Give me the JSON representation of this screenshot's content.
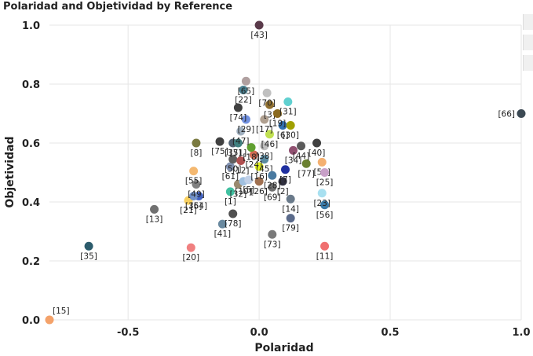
{
  "chart_data": {
    "type": "scatter",
    "title": "Polaridad and Objetividad by Reference",
    "xlabel": "Polaridad",
    "ylabel": "Objetividad",
    "xlim": [
      -0.8,
      1.0
    ],
    "ylim": [
      0.0,
      1.0
    ],
    "x_ticks": [
      "-0.5",
      "0.0",
      "0.5",
      "1.0"
    ],
    "x_tick_values": [
      -0.5,
      0.0,
      0.5,
      1.0
    ],
    "y_ticks": [
      "0.0",
      "0.2",
      "0.4",
      "0.6",
      "0.8",
      "1.0"
    ],
    "y_tick_values": [
      0.0,
      0.2,
      0.4,
      0.6,
      0.8,
      1.0
    ],
    "grid": true,
    "points": [
      {
        "label": "[43]",
        "x": 0.0,
        "y": 1.0,
        "color": "#5a3a4a"
      },
      {
        "label": "[66]",
        "x": 1.0,
        "y": 0.7,
        "color": "#3c4a54"
      },
      {
        "label": "[15]",
        "x": -0.8,
        "y": 0.0,
        "color": "#f4a26a"
      },
      {
        "label": "[35]",
        "x": -0.65,
        "y": 0.25,
        "color": "#2c5c6c"
      },
      {
        "label": "[20]",
        "x": -0.26,
        "y": 0.245,
        "color": "#f08080"
      },
      {
        "label": "[11]",
        "x": 0.25,
        "y": 0.25,
        "color": "#f07070"
      },
      {
        "label": "[73]",
        "x": 0.05,
        "y": 0.29,
        "color": "#7a7a7a"
      },
      {
        "label": "[41]",
        "x": -0.14,
        "y": 0.325,
        "color": "#6a8aa0"
      },
      {
        "label": "[78]",
        "x": -0.1,
        "y": 0.36,
        "color": "#505050"
      },
      {
        "label": "[79]",
        "x": 0.12,
        "y": 0.345,
        "color": "#5a6a8a"
      },
      {
        "label": "[13]",
        "x": -0.4,
        "y": 0.375,
        "color": "#707070"
      },
      {
        "label": "[21]",
        "x": -0.27,
        "y": 0.405,
        "color": "#f8d060"
      },
      {
        "label": "[14]",
        "x": 0.12,
        "y": 0.41,
        "color": "#6a7a8a"
      },
      {
        "label": "[56]",
        "x": 0.25,
        "y": 0.39,
        "color": "#3a7aa8"
      },
      {
        "label": "[23]",
        "x": 0.24,
        "y": 0.43,
        "color": "#a8e0f0"
      },
      {
        "label": "[54]",
        "x": -0.23,
        "y": 0.42,
        "color": "#4060c0"
      },
      {
        "label": "[36]",
        "x": -0.25,
        "y": 0.42,
        "color": "#7090c8"
      },
      {
        "label": "[1]",
        "x": -0.11,
        "y": 0.435,
        "color": "#40c0a0"
      },
      {
        "label": "[32]",
        "x": -0.08,
        "y": 0.46,
        "color": "#9a8a70"
      },
      {
        "label": "[49]",
        "x": -0.24,
        "y": 0.46,
        "color": "#808080"
      },
      {
        "label": "[10]",
        "x": -0.06,
        "y": 0.47,
        "color": "#a0c0e0"
      },
      {
        "label": "[5]",
        "x": -0.04,
        "y": 0.475,
        "color": "#c0d0e8"
      },
      {
        "label": "[26]",
        "x": 0.0,
        "y": 0.47,
        "color": "#a07050"
      },
      {
        "label": "[69]",
        "x": 0.05,
        "y": 0.45,
        "color": "#707070"
      },
      {
        "label": "[2]",
        "x": 0.09,
        "y": 0.47,
        "color": "#303040"
      },
      {
        "label": "[55]",
        "x": -0.25,
        "y": 0.505,
        "color": "#f4b870"
      },
      {
        "label": "[61]",
        "x": -0.11,
        "y": 0.52,
        "color": "#8090b0"
      },
      {
        "label": "[50]",
        "x": -0.1,
        "y": 0.545,
        "color": "#606060"
      },
      {
        "label": "[12]",
        "x": -0.07,
        "y": 0.54,
        "color": "#b05050"
      },
      {
        "label": "[16]",
        "x": 0.0,
        "y": 0.52,
        "color": "#e0f020"
      },
      {
        "label": "[45]",
        "x": 0.02,
        "y": 0.545,
        "color": "#5a8aa0"
      },
      {
        "label": "[24]",
        "x": -0.02,
        "y": 0.56,
        "color": "#d06a50"
      },
      {
        "label": "[7]",
        "x": 0.1,
        "y": 0.51,
        "color": "#2030a0"
      },
      {
        "label": "[28]",
        "x": 0.05,
        "y": 0.49,
        "color": "#4a7aa0"
      },
      {
        "label": "[58]",
        "x": 0.24,
        "y": 0.535,
        "color": "#f4b070"
      },
      {
        "label": "[25]",
        "x": 0.25,
        "y": 0.5,
        "color": "#c8a0c8"
      },
      {
        "label": "[77]",
        "x": 0.18,
        "y": 0.53,
        "color": "#6a8030"
      },
      {
        "label": "[34]",
        "x": 0.13,
        "y": 0.575,
        "color": "#905070"
      },
      {
        "label": "[40]",
        "x": 0.22,
        "y": 0.6,
        "color": "#404040"
      },
      {
        "label": "[44]",
        "x": 0.16,
        "y": 0.59,
        "color": "#5a5a5a"
      },
      {
        "label": "[8]",
        "x": -0.24,
        "y": 0.6,
        "color": "#7a7a40"
      },
      {
        "label": "[75]",
        "x": -0.15,
        "y": 0.605,
        "color": "#404040"
      },
      {
        "label": "[37]",
        "x": -0.1,
        "y": 0.6,
        "color": "#506070"
      },
      {
        "label": "[51]",
        "x": -0.08,
        "y": 0.6,
        "color": "#408080"
      },
      {
        "label": "[18]",
        "x": -0.03,
        "y": 0.585,
        "color": "#60a030"
      },
      {
        "label": "[38]",
        "x": 0.02,
        "y": 0.59,
        "color": "#c0c0c0"
      },
      {
        "label": "[46]",
        "x": 0.04,
        "y": 0.63,
        "color": "#c0e050"
      },
      {
        "label": "[47]",
        "x": -0.07,
        "y": 0.64,
        "color": "#a0b0c0"
      },
      {
        "label": "[29]",
        "x": -0.05,
        "y": 0.68,
        "color": "#7090e0"
      },
      {
        "label": "[17]",
        "x": 0.02,
        "y": 0.68,
        "color": "#b0a090"
      },
      {
        "label": "[6]",
        "x": 0.09,
        "y": 0.66,
        "color": "#3070b0"
      },
      {
        "label": "[30]",
        "x": 0.12,
        "y": 0.66,
        "color": "#a0a000"
      },
      {
        "label": "[74]",
        "x": -0.08,
        "y": 0.72,
        "color": "#404040"
      },
      {
        "label": "[3]",
        "x": 0.04,
        "y": 0.73,
        "color": "#907030"
      },
      {
        "label": "[19]",
        "x": 0.07,
        "y": 0.7,
        "color": "#8a6a20"
      },
      {
        "label": "[31]",
        "x": 0.11,
        "y": 0.74,
        "color": "#60d0d0"
      },
      {
        "label": "[22]",
        "x": -0.06,
        "y": 0.78,
        "color": "#4a8090"
      },
      {
        "label": "[65]",
        "x": -0.05,
        "y": 0.81,
        "color": "#b0a0a0"
      },
      {
        "label": "[70]",
        "x": 0.03,
        "y": 0.77,
        "color": "#c0c0c0"
      }
    ]
  }
}
